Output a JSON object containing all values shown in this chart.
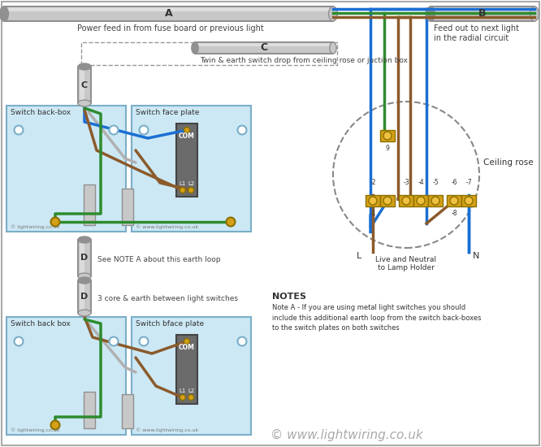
{
  "bg_color": "#ffffff",
  "wire_blue": "#1a6fd4",
  "wire_green": "#2e8b2e",
  "wire_brown": "#8B5A2B",
  "wire_black": "#111111",
  "wire_gray": "#b0b0b0",
  "box_fill": "#cce8f4",
  "box_edge": "#7aaec8",
  "terminal_fill": "#d4a017",
  "terminal_light": "#f0c040",
  "switch_fill": "#6b6b6b",
  "switch_edge": "#444444",
  "conduit_fill": "#c8c8c8",
  "conduit_edge": "#909090",
  "conduit_highlight": "#e8e8e8",
  "label_A": "A",
  "label_B": "B",
  "label_C": "C",
  "label_D": "D",
  "text_power_feed": "Power feed in from fuse board or previous light",
  "text_feed_out": "Feed out to next light\nin the radial circuit",
  "text_twin_earth": "Twin & earth switch drop from ceiling rose or juction box",
  "text_3core": "3 core & earth between light switches",
  "text_see_note": "See NOTE A about this earth loop",
  "text_ceiling_rose": "Ceiling rose",
  "text_live_neutral": "Live and Neutral\nto Lamp Holder",
  "text_switch_backbox1": "Switch back-box",
  "text_switch_faceplate1": "Switch face plate",
  "text_switch_backbox2": "Switch back box",
  "text_switch_faceplate2": "Switch bface plate",
  "text_COM": "COM",
  "text_L1": "L1",
  "text_L2": "L2",
  "text_copyright": "© www.lightwiring.co.uk",
  "text_notes_title": "NOTES",
  "text_note_a": "Note A - If you are using metal light switches you should\ninclude this additional earth loop from the switch back-boxes\nto the switch plates on both switches",
  "text_lightwiring1": "© lightwiring.co.uk",
  "text_wwwlightwiring": "© www.lightwiring.co.uk"
}
